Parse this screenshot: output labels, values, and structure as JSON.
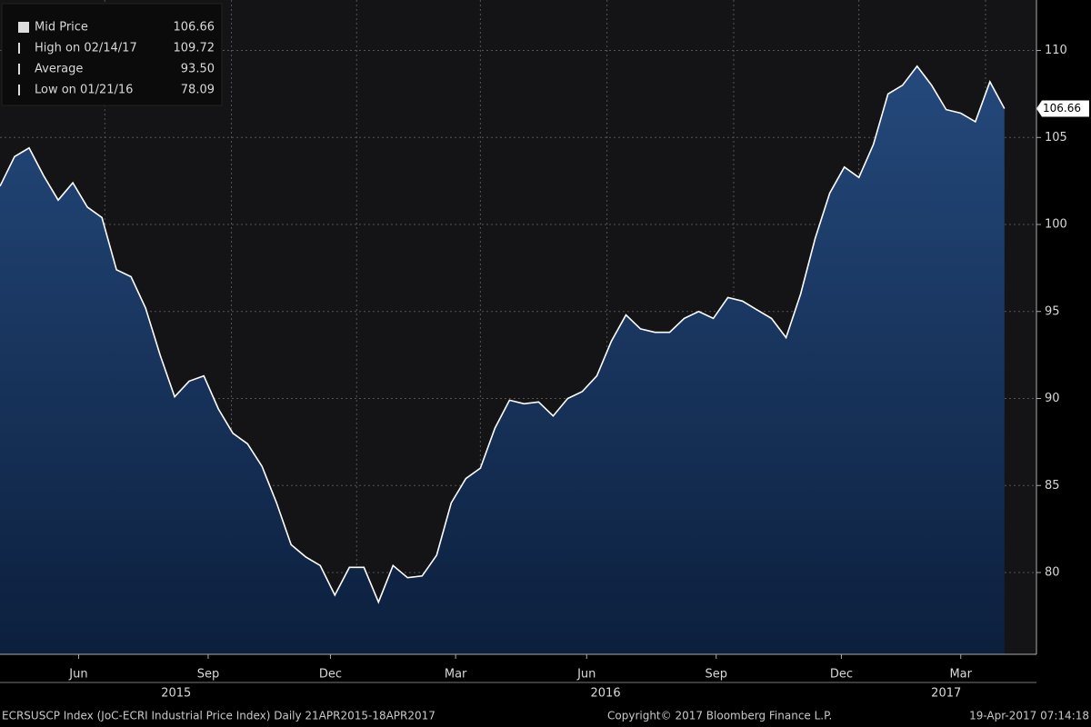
{
  "chart_data": {
    "type": "area",
    "legend": [
      {
        "label": "Mid Price",
        "value": 106.66
      },
      {
        "label": "High on 02/14/17",
        "value": 109.72
      },
      {
        "label": "Average",
        "value": 93.5,
        "value_label": "93.50"
      },
      {
        "label": "Low on 01/21/16",
        "value": 78.09
      }
    ],
    "values": [
      102.2,
      103.9,
      104.4,
      102.8,
      101.4,
      102.4,
      101,
      100.4,
      97.4,
      97,
      95.2,
      92.5,
      90.1,
      91,
      91.3,
      89.4,
      88,
      87.4,
      86.1,
      84,
      81.6,
      80.9,
      80.4,
      78.7,
      80.3,
      80.3,
      78.3,
      80.4,
      79.7,
      79.8,
      81,
      84,
      85.4,
      86,
      88.3,
      89.9,
      89.7,
      89.8,
      89,
      90,
      90.4,
      91.3,
      93.3,
      94.8,
      94,
      93.8,
      93.8,
      94.6,
      95,
      94.6,
      95.8,
      95.6,
      95.1,
      94.6,
      93.5,
      96,
      99.2,
      101.8,
      103.3,
      102.7,
      104.6,
      107.5,
      108,
      109.1,
      108,
      106.6,
      106.4,
      105.9,
      108.2,
      106.66
    ],
    "color": "#ffffff",
    "xlim": [
      0,
      71.2
    ],
    "ylim": [
      75.3,
      112.9
    ],
    "yticks": [
      80,
      85,
      90,
      95,
      100,
      105,
      110
    ],
    "xticks": [
      {
        "value": 5.4,
        "label": "Jun"
      },
      {
        "value": 14.3,
        "label": "Sep"
      },
      {
        "value": 22.7,
        "label": "Dec"
      },
      {
        "value": 31.3,
        "label": "Mar"
      },
      {
        "value": 40.3,
        "label": "Jun"
      },
      {
        "value": 49.2,
        "label": "Sep"
      },
      {
        "value": 57.8,
        "label": "Dec"
      },
      {
        "value": 66,
        "label": "Mar"
      }
    ],
    "xgrid": [
      7.2,
      15.9,
      24.5,
      33,
      41.7,
      50.4,
      59,
      67.7
    ],
    "year_ticks": [
      {
        "value": 12.1,
        "label": "2015"
      },
      {
        "value": 41.6,
        "label": "2016"
      },
      {
        "value": 65,
        "label": "2017"
      }
    ],
    "grid": true,
    "footer": [
      "ECRSUSCP Index (JoC-ECRI Industrial Price Index)  Daily 21APR2015-18APR2017",
      "Copyright© 2017 Bloomberg Finance L.P.",
      "19-Apr-2017 07:14:18"
    ]
  }
}
